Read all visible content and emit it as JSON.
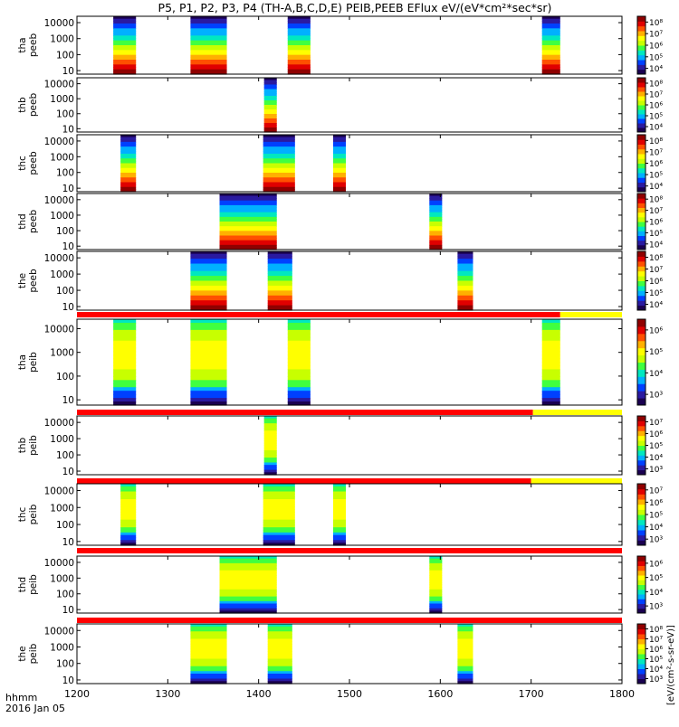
{
  "title": "P5, P1, P2, P3, P4 (TH-A,B,C,D,E) PEIB,PEEB EFlux eV/(eV*cm²*sec*sr)",
  "footer": {
    "time_label": "hhmm",
    "date_label": "2016 Jan 05"
  },
  "colorbar_axis_label": "[eV/(cm²-s-sr-eV)]",
  "colors": {
    "spectrum": [
      "#1a0050",
      "#2a1aa0",
      "#0040ff",
      "#00b0ff",
      "#00e8c0",
      "#40ff40",
      "#c8ff00",
      "#ffff00",
      "#ffb000",
      "#ff5000",
      "#e00000",
      "#900000"
    ],
    "bar_red": "#ff0000",
    "bar_yellow": "#ffff00"
  },
  "chart_data": {
    "type": "heatmap",
    "x_range": [
      1200,
      1800
    ],
    "x_ticks": [
      1200,
      1300,
      1400,
      1500,
      1600,
      1700,
      1800
    ],
    "x_tick_labels": [
      "1200",
      "1300",
      "1400",
      "1500",
      "1600",
      "1700",
      "1800"
    ],
    "y_scale": "log",
    "y_range": [
      6,
      25000
    ],
    "y_ticks": [
      10,
      100,
      1000,
      10000
    ],
    "y_tick_labels": [
      "10",
      "100",
      "1000",
      "10000"
    ],
    "panels": [
      {
        "label": "tha peeb",
        "cbar_ticks": [
          "10⁴",
          "10⁵",
          "10⁶",
          "10⁷",
          "10⁸"
        ],
        "bursts": [
          [
            1240,
            1265,
            "flat"
          ],
          [
            1325,
            1365,
            "flat"
          ],
          [
            1432,
            1457,
            "flat"
          ],
          [
            1712,
            1732,
            "flat"
          ]
        ]
      },
      {
        "label": "thb peeb",
        "cbar_ticks": [
          "10⁴",
          "10⁵",
          "10⁶",
          "10⁷",
          "10⁸"
        ],
        "bursts": [
          [
            1406,
            1420,
            "flat"
          ]
        ]
      },
      {
        "label": "thc peeb",
        "cbar_ticks": [
          "10⁴",
          "10⁵",
          "10⁶",
          "10⁷",
          "10⁸"
        ],
        "bursts": [
          [
            1248,
            1265,
            "flat"
          ],
          [
            1405,
            1440,
            "flat"
          ],
          [
            1482,
            1496,
            "flat"
          ]
        ]
      },
      {
        "label": "thd peeb",
        "cbar_ticks": [
          "10⁴",
          "10⁵",
          "10⁶",
          "10⁷",
          "10⁸"
        ],
        "bursts": [
          [
            1357,
            1420,
            "flat"
          ],
          [
            1588,
            1602,
            "flat"
          ]
        ]
      },
      {
        "label": "the peeb",
        "cbar_ticks": [
          "10⁴",
          "10⁵",
          "10⁶",
          "10⁷",
          "10⁸"
        ],
        "bursts": [
          [
            1325,
            1365,
            "flat"
          ],
          [
            1410,
            1437,
            "flat"
          ],
          [
            1619,
            1636,
            "flat"
          ]
        ]
      },
      {
        "label": "tha peib",
        "cbar_ticks": [
          "10³",
          "10⁴",
          "10⁵",
          "10⁶"
        ],
        "bar_yellow_start": 1732,
        "bursts": [
          [
            1240,
            1265,
            "ion"
          ],
          [
            1325,
            1365,
            "ion"
          ],
          [
            1432,
            1457,
            "ion"
          ],
          [
            1712,
            1732,
            "ion"
          ]
        ]
      },
      {
        "label": "thb peib",
        "cbar_ticks": [
          "10³",
          "10⁴",
          "10⁵",
          "10⁶",
          "10⁷"
        ],
        "bar_yellow_start": 1702,
        "bursts": [
          [
            1406,
            1420,
            "ion"
          ]
        ]
      },
      {
        "label": "thc peib",
        "cbar_ticks": [
          "10³",
          "10⁴",
          "10⁵",
          "10⁶",
          "10⁷"
        ],
        "bar_yellow_start": 1700,
        "bursts": [
          [
            1248,
            1265,
            "ion"
          ],
          [
            1405,
            1440,
            "ion"
          ],
          [
            1482,
            1496,
            "ion"
          ]
        ]
      },
      {
        "label": "thd peib",
        "cbar_ticks": [
          "10³",
          "10⁴",
          "10⁵",
          "10⁶"
        ],
        "bursts": [
          [
            1357,
            1420,
            "ion"
          ],
          [
            1588,
            1602,
            "ion"
          ]
        ]
      },
      {
        "label": "the peib",
        "cbar_ticks": [
          "10³",
          "10⁴",
          "10⁵",
          "10⁶",
          "10⁷",
          "10⁸"
        ],
        "bursts": [
          [
            1325,
            1365,
            "ion"
          ],
          [
            1410,
            1437,
            "ion"
          ],
          [
            1619,
            1636,
            "ion"
          ]
        ]
      }
    ]
  }
}
